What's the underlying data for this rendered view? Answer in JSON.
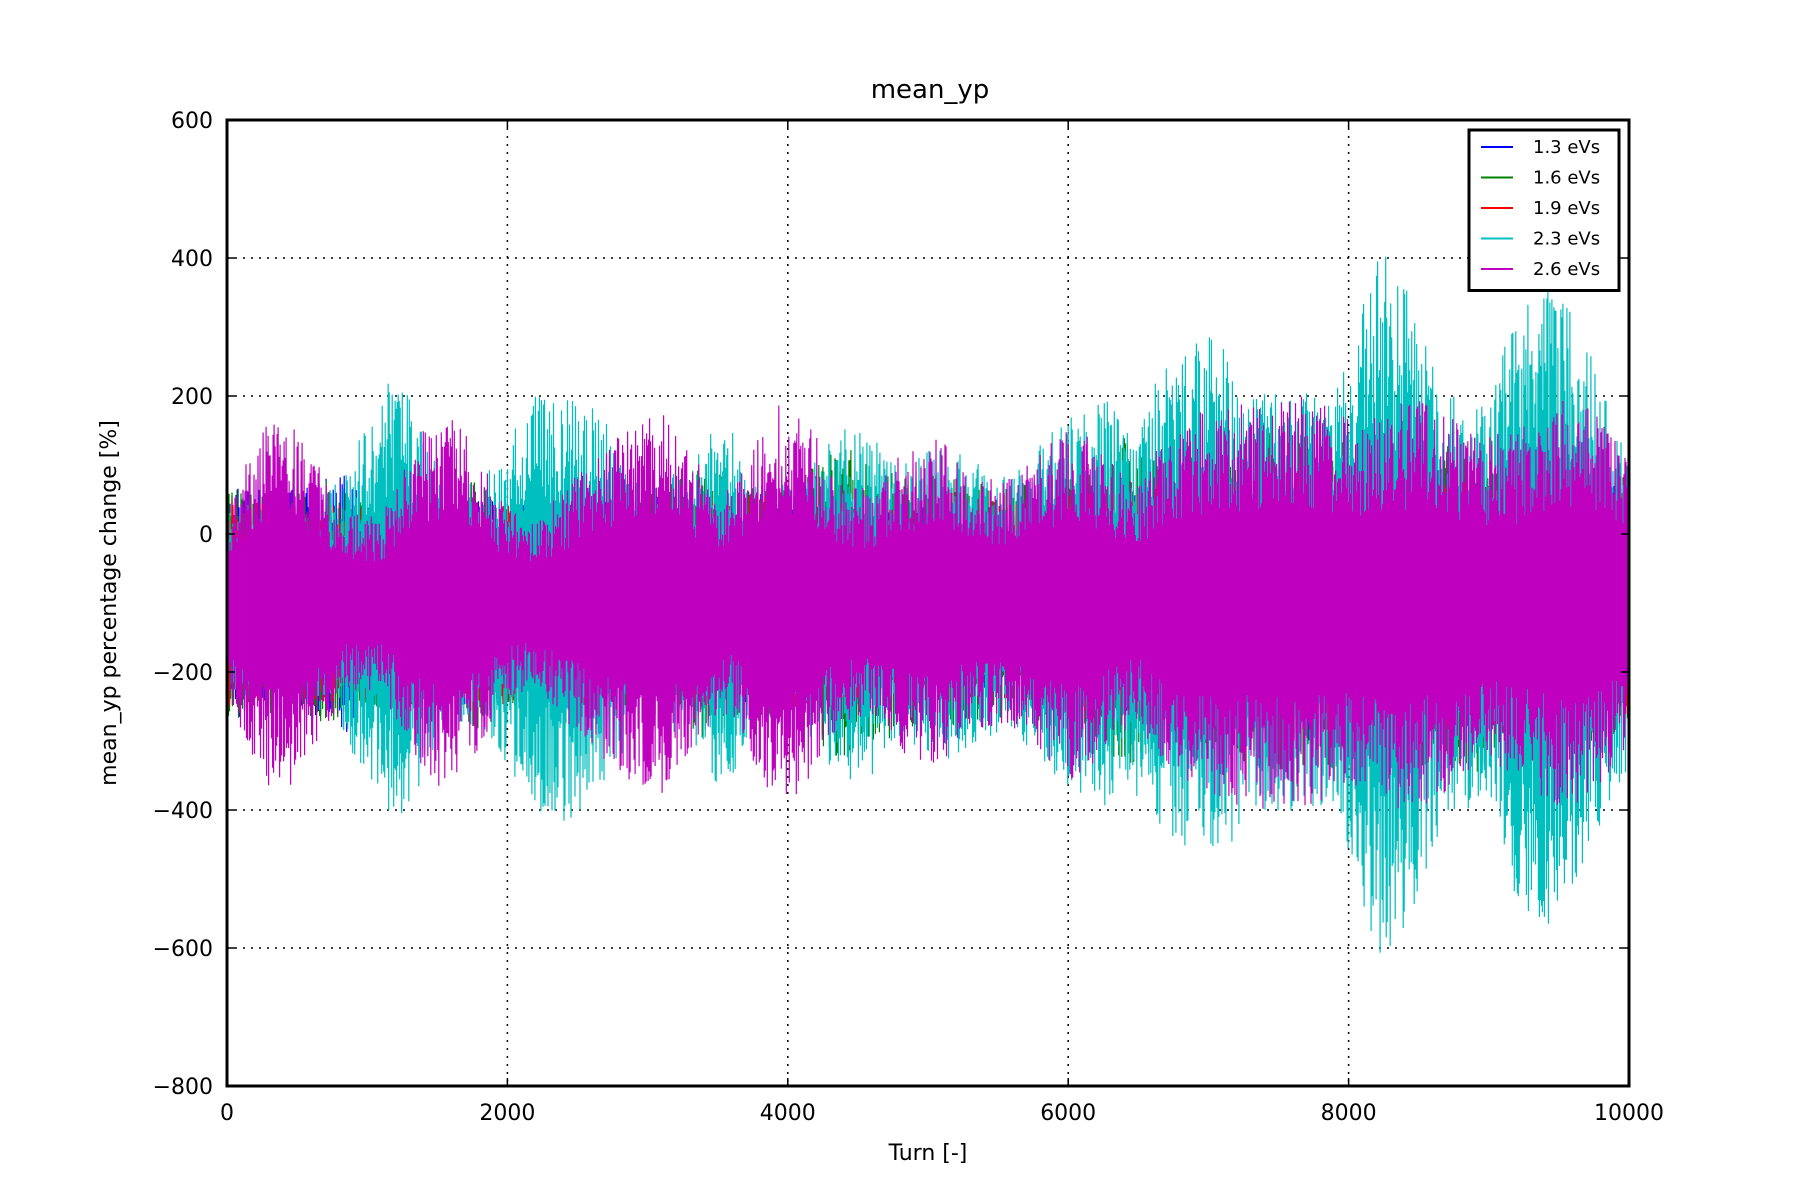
{
  "chart_data": {
    "type": "line",
    "title": "mean_yp",
    "xlabel": "Turn [-]",
    "ylabel": "mean_yp percentage change [%]",
    "xlim": [
      0,
      10000
    ],
    "ylim": [
      -800,
      600
    ],
    "xticks": [
      0,
      2000,
      4000,
      6000,
      8000,
      10000
    ],
    "xtick_labels": [
      "0",
      "2000",
      "4000",
      "6000",
      "8000",
      "10000"
    ],
    "yticks": [
      -800,
      -600,
      -400,
      -200,
      0,
      200,
      400,
      600
    ],
    "ytick_labels": [
      "−800",
      "−600",
      "−400",
      "−200",
      "0",
      "200",
      "400",
      "600"
    ],
    "grid": true,
    "legend_position": "top-right",
    "series": [
      {
        "name": "1.3 eVs",
        "color": "#0000ff",
        "center": -100,
        "envelope_x": [
          0,
          400,
          700,
          850,
          1000,
          1200,
          1500,
          1800,
          2000,
          2500,
          3000,
          3500,
          4000,
          4500,
          5000,
          5500,
          6000,
          6500,
          7000,
          7500,
          8000,
          8500,
          9000,
          9500,
          10000
        ],
        "envelope_amp": [
          170,
          160,
          180,
          190,
          150,
          120,
          130,
          160,
          150,
          140,
          160,
          140,
          170,
          130,
          140,
          120,
          150,
          160,
          200,
          210,
          200,
          190,
          170,
          180,
          170
        ]
      },
      {
        "name": "1.6 eVs",
        "color": "#008000",
        "center": -100,
        "envelope_x": [
          0,
          400,
          700,
          1000,
          1500,
          1800,
          2000,
          2500,
          3000,
          3400,
          3700,
          4000,
          4400,
          4600,
          5000,
          5500,
          6000,
          6400,
          6700,
          7000,
          7500,
          8000,
          8500,
          8900,
          9300,
          10000
        ],
        "envelope_amp": [
          170,
          160,
          180,
          150,
          150,
          185,
          150,
          150,
          160,
          200,
          170,
          170,
          230,
          200,
          190,
          170,
          180,
          240,
          200,
          220,
          250,
          240,
          240,
          250,
          220,
          190
        ]
      },
      {
        "name": "1.9 eVs",
        "color": "#ff0000",
        "center": -100,
        "envelope_x": [
          0,
          1000,
          2000,
          3000,
          4000,
          5000,
          6000,
          7000,
          8000,
          9000,
          10000
        ],
        "envelope_amp": [
          150,
          140,
          150,
          140,
          160,
          140,
          160,
          180,
          190,
          180,
          170
        ]
      },
      {
        "name": "2.3 eVs",
        "color": "#00bfbf",
        "center": -100,
        "envelope_x": [
          0,
          600,
          800,
          1000,
          1150,
          1300,
          1500,
          1800,
          2000,
          2200,
          2400,
          2650,
          2900,
          3300,
          3500,
          3650,
          3800,
          4100,
          4400,
          4650,
          4800,
          5100,
          5300,
          5600,
          5900,
          6250,
          6400,
          6700,
          6900,
          7050,
          7300,
          7600,
          7900,
          8100,
          8250,
          8450,
          8700,
          9000,
          9200,
          9400,
          9650,
          9900,
          10000
        ],
        "envelope_amp": [
          140,
          150,
          180,
          260,
          320,
          300,
          200,
          170,
          240,
          300,
          320,
          280,
          190,
          190,
          270,
          240,
          170,
          190,
          260,
          250,
          200,
          230,
          210,
          180,
          260,
          300,
          260,
          340,
          380,
          390,
          300,
          310,
          300,
          450,
          520,
          450,
          300,
          300,
          430,
          480,
          400,
          280,
          240
        ]
      },
      {
        "name": "2.6 eVs",
        "color": "#bf00bf",
        "center": -100,
        "envelope_x": [
          0,
          150,
          300,
          450,
          650,
          850,
          1100,
          1400,
          1600,
          1800,
          2000,
          2200,
          2500,
          2800,
          3100,
          3400,
          3600,
          3800,
          3950,
          4150,
          4400,
          4600,
          4800,
          5100,
          5300,
          5600,
          5900,
          6050,
          6200,
          6500,
          6700,
          6900,
          7100,
          7400,
          7700,
          7900,
          8100,
          8350,
          8650,
          8900,
          9200,
          9500,
          9750,
          10000
        ],
        "envelope_amp": [
          140,
          210,
          270,
          270,
          200,
          130,
          130,
          250,
          280,
          210,
          140,
          120,
          190,
          250,
          280,
          190,
          160,
          250,
          300,
          260,
          170,
          170,
          220,
          240,
          180,
          190,
          240,
          260,
          230,
          170,
          250,
          280,
          290,
          300,
          300,
          290,
          260,
          300,
          290,
          240,
          250,
          300,
          280,
          210
        ]
      }
    ]
  }
}
